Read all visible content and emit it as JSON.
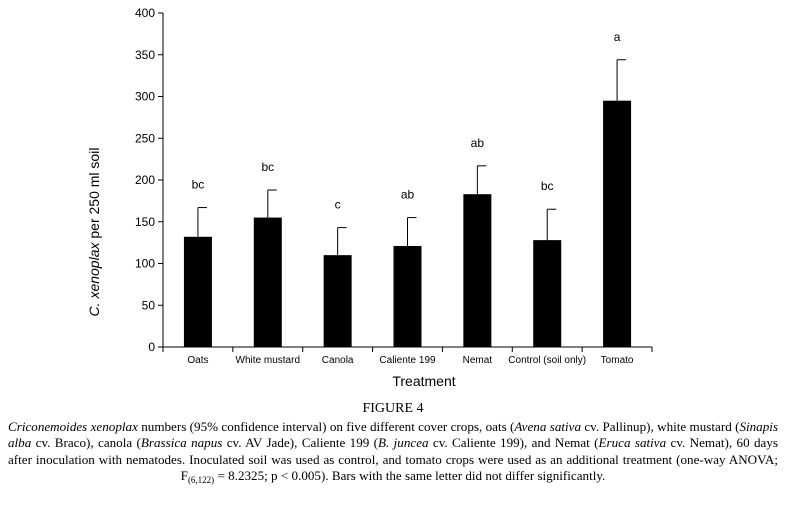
{
  "chart_data": {
    "type": "bar",
    "categories": [
      "Oats",
      "White mustard",
      "Canola",
      "Caliente 199",
      "Nemat",
      "Control (soil only)",
      "Tomato"
    ],
    "values": [
      132,
      155,
      110,
      121,
      183,
      128,
      295
    ],
    "error_upper": [
      167,
      188,
      143,
      155,
      217,
      165,
      344
    ],
    "significance": [
      "bc",
      "bc",
      "c",
      "ab",
      "ab",
      "bc",
      "a"
    ],
    "xlabel": "Treatment",
    "ylabel_italic": "C. xenoplax",
    "ylabel_rest": " per 250 ml soil",
    "ylim": [
      0,
      400
    ],
    "yticks": [
      "0",
      "50",
      "100",
      "150",
      "200",
      "250",
      "300",
      "350",
      "400"
    ],
    "bar_color": "#000000",
    "grid": false
  },
  "figure": {
    "label": "FIGURE 4",
    "caption": [
      {
        "text": "Criconemoides xenoplax",
        "italic": true
      },
      {
        "text": " numbers (95% confidence interval) on five different cover crops, oats (",
        "italic": false
      },
      {
        "text": "Avena sativa",
        "italic": true
      },
      {
        "text": " cv. Pallinup), white mustard (",
        "italic": false
      },
      {
        "text": "Sinapis alba",
        "italic": true
      },
      {
        "text": " cv. Braco), canola (",
        "italic": false
      },
      {
        "text": "Brassica napus",
        "italic": true
      },
      {
        "text": " cv. AV Jade), Caliente 199 (",
        "italic": false
      },
      {
        "text": "B. juncea",
        "italic": true
      },
      {
        "text": " cv. Caliente 199), and Nemat (",
        "italic": false
      },
      {
        "text": "Eruca sativa",
        "italic": true
      },
      {
        "text": " cv. Nemat), 60 days after inoculation with nematodes. Inoculated soil was used as control, and tomato crops were used as an additional treatment (one-way ANOVA; F",
        "italic": false
      },
      {
        "text": "(6,122)",
        "sub": true
      },
      {
        "text": " = 8.2325; p < 0.005). Bars with the same letter did not differ significantly.",
        "italic": false
      }
    ]
  }
}
